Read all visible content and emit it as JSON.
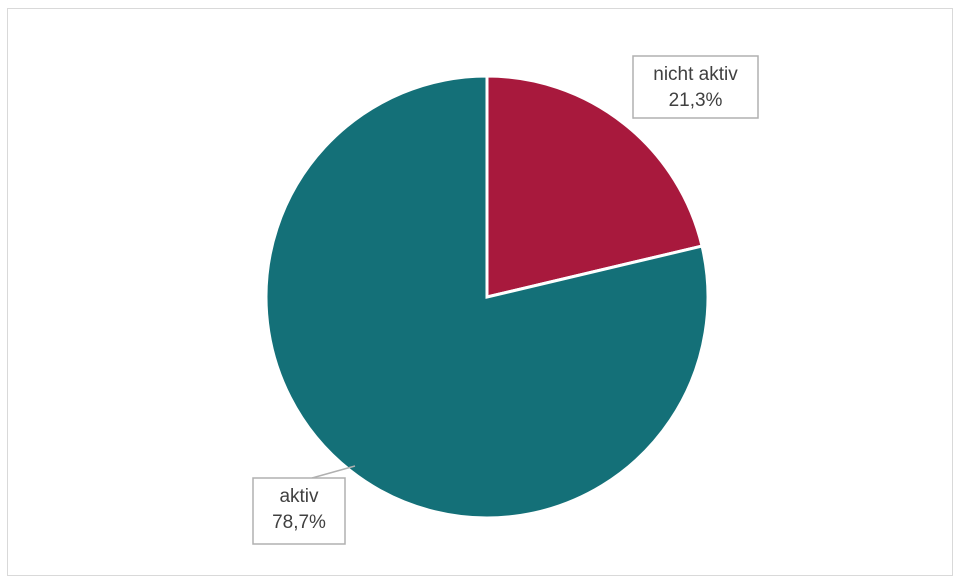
{
  "chart_data": {
    "type": "pie",
    "start_angle_deg": 0,
    "direction": "clockwise",
    "slices": [
      {
        "label": "nicht aktiv",
        "value": 21.3,
        "display_value": "21,3%",
        "color": "#A8193D"
      },
      {
        "label": "aktiv",
        "value": 78.7,
        "display_value": "78,7%",
        "color": "#147078"
      }
    ],
    "title": "",
    "legend": "none",
    "label_box_border": "#b0b0b0",
    "frame_border": "#d9d9d9"
  }
}
